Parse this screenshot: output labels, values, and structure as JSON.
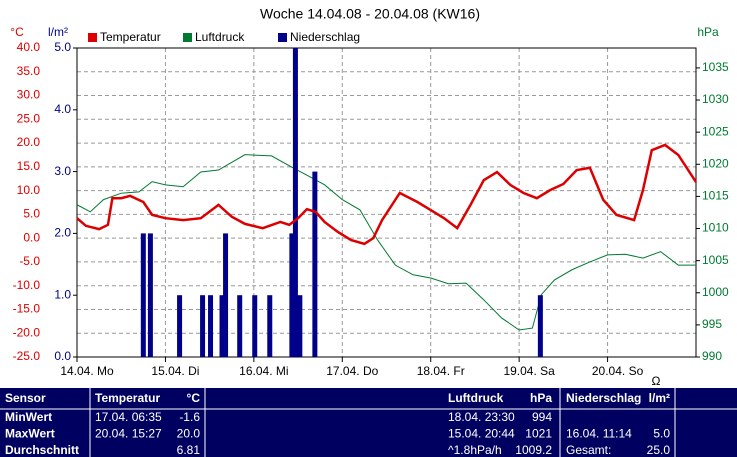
{
  "chart_data": {
    "type": "line",
    "title": "Woche 14.04.08 - 20.04.08 (KW16)",
    "ylabel": "°C",
    "y3label": "l/m²",
    "y2label": "hPa",
    "annotation": "Ω",
    "grid": true,
    "xlim": [
      0,
      7
    ],
    "xticks": [
      {
        "value": 0,
        "label": "14.04. Mo"
      },
      {
        "value": 1,
        "label": "15.04. Di"
      },
      {
        "value": 2,
        "label": "16.04. Mi"
      },
      {
        "value": 3,
        "label": "17.04. Do"
      },
      {
        "value": 4,
        "label": "18.04. Fr"
      },
      {
        "value": 5,
        "label": "19.04. Sa"
      },
      {
        "value": 6,
        "label": "20.04. So"
      }
    ],
    "ylim": [
      -25,
      40
    ],
    "yticks": [
      {
        "value": -25,
        "label": "-25.0"
      },
      {
        "value": -20,
        "label": "-20.0"
      },
      {
        "value": -15,
        "label": "-15.0"
      },
      {
        "value": -10,
        "label": "-10.0"
      },
      {
        "value": -5,
        "label": "-5.0"
      },
      {
        "value": 0,
        "label": "0.0"
      },
      {
        "value": 5,
        "label": "5.0"
      },
      {
        "value": 10,
        "label": "10.0"
      },
      {
        "value": 15,
        "label": "15.0"
      },
      {
        "value": 20,
        "label": "20.0"
      },
      {
        "value": 25,
        "label": "25.0"
      },
      {
        "value": 30,
        "label": "30.0"
      },
      {
        "value": 35,
        "label": "35.0"
      },
      {
        "value": 40,
        "label": "40.0"
      }
    ],
    "y3lim": [
      0,
      5
    ],
    "y3ticks": [
      {
        "value": 0,
        "label": "0.0"
      },
      {
        "value": 1,
        "label": "1.0"
      },
      {
        "value": 2,
        "label": "2.0"
      },
      {
        "value": 3,
        "label": "3.0"
      },
      {
        "value": 4,
        "label": "4.0"
      },
      {
        "value": 5,
        "label": "5.0"
      }
    ],
    "y2lim": [
      990,
      1038.1
    ],
    "y2ticks": [
      990,
      995,
      1000,
      1005,
      1010,
      1015,
      1020,
      1025,
      1030,
      1035
    ],
    "series": [
      {
        "name": "Temperatur",
        "color": "#dd0000",
        "axis": "y",
        "kind": "line",
        "x": [
          0,
          0.1,
          0.25,
          0.35,
          0.4,
          0.5,
          0.6,
          0.75,
          0.85,
          1.0,
          1.2,
          1.4,
          1.6,
          1.75,
          1.9,
          2.1,
          2.3,
          2.4,
          2.5,
          2.6,
          2.7,
          2.8,
          2.95,
          3.1,
          3.25,
          3.35,
          3.45,
          3.65,
          3.85,
          4.0,
          4.15,
          4.3,
          4.45,
          4.6,
          4.75,
          4.9,
          5.05,
          5.2,
          5.35,
          5.5,
          5.65,
          5.8,
          5.95,
          6.1,
          6.3,
          6.4,
          6.5,
          6.65,
          6.8,
          7.0
        ],
        "values": [
          4.2,
          2.6,
          1.9,
          2.8,
          8.4,
          8.4,
          8.9,
          7.6,
          4.9,
          4.2,
          3.8,
          4.2,
          7.0,
          4.5,
          3.0,
          2.1,
          3.4,
          2.8,
          4.2,
          6.1,
          5.5,
          3.4,
          1.3,
          -0.4,
          -1.2,
          0.0,
          3.8,
          9.5,
          7.6,
          5.9,
          4.2,
          2.1,
          7.0,
          12.2,
          13.9,
          11.2,
          9.5,
          8.4,
          10.1,
          11.4,
          14.3,
          14.8,
          8.1,
          4.9,
          3.8,
          10.1,
          18.5,
          19.6,
          17.5,
          11.8
        ]
      },
      {
        "name": "Luftdruck",
        "color": "#007a30",
        "axis": "y2",
        "kind": "line",
        "x": [
          0,
          0.15,
          0.3,
          0.5,
          0.7,
          0.85,
          1.0,
          1.2,
          1.4,
          1.6,
          1.9,
          2.2,
          2.45,
          2.6,
          2.8,
          3.0,
          3.2,
          3.4,
          3.6,
          3.8,
          4.0,
          4.2,
          4.4,
          4.6,
          4.8,
          5.0,
          5.15,
          5.25,
          5.4,
          5.6,
          5.8,
          6.0,
          6.2,
          6.4,
          6.6,
          6.8,
          7.0
        ],
        "values": [
          1013.7,
          1012.6,
          1014.5,
          1015.5,
          1015.7,
          1017.3,
          1016.8,
          1016.5,
          1018.8,
          1019.1,
          1021.5,
          1021.3,
          1019.4,
          1018.3,
          1016.8,
          1014.5,
          1012.9,
          1008.2,
          1004.3,
          1002.8,
          1002.3,
          1001.4,
          1001.5,
          998.9,
          996.1,
          994.2,
          994.5,
          999.7,
          1002.0,
          1003.6,
          1004.8,
          1005.9,
          1006.0,
          1005.4,
          1006.4,
          1004.3,
          1004.3
        ]
      },
      {
        "name": "Niederschlag",
        "color": "#00008b",
        "axis": "y3",
        "kind": "bar",
        "x": [
          0.75,
          0.83,
          1.16,
          1.42,
          1.51,
          1.64,
          1.68,
          1.84,
          2.01,
          2.18,
          2.43,
          2.47,
          2.52,
          2.69,
          5.24
        ],
        "values": [
          2,
          2,
          1,
          1,
          1,
          1,
          2,
          1,
          1,
          1,
          2,
          5,
          1,
          3,
          1
        ]
      }
    ]
  },
  "table": {
    "header": {
      "sensor": "Sensor",
      "temp": "Temperatur",
      "tunit": "°C",
      "press": "Luftdruck",
      "punit": "hPa",
      "rain": "Niederschlag",
      "runit": "l/m²"
    },
    "rows": [
      {
        "sensor": "MinWert",
        "ttime": "17.04.  06:35",
        "tval": "-1.6",
        "ptime": "18.04.  23:30",
        "pval": "994"
      },
      {
        "sensor": "MaxWert",
        "ttime": "20.04.  15:27",
        "tval": "20.0",
        "ptime": "15.04.  20:44",
        "pval": "1021",
        "rtime": "16.04.  11:14",
        "rval": "5.0"
      },
      {
        "sensor": "Durchschnitt",
        "tval": "6.81",
        "ptime": "^1.8hPa/h",
        "pval": "1009.2",
        "rtime": "Gesamt:",
        "rval": "25.0"
      }
    ]
  }
}
